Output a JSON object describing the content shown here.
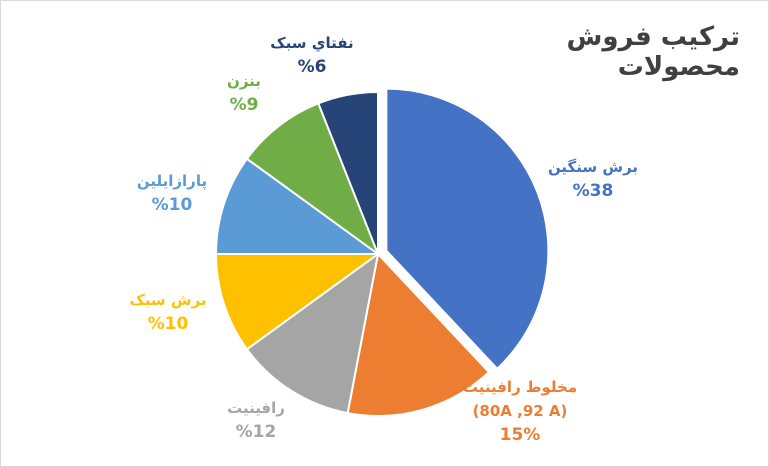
{
  "chart_data": {
    "type": "pie",
    "title": "تركيب فروش محصولات",
    "slices": [
      {
        "name": "برش سنگين",
        "label": "%38",
        "value": 38,
        "color": "#4472C4",
        "exploded": true
      },
      {
        "name": "مخلوط رافينيت",
        "name2": "(80A ,92 A)",
        "label": "15%",
        "value": 15,
        "color": "#ED7D31"
      },
      {
        "name": "رافينيت",
        "label": "%12",
        "value": 12,
        "color": "#A5A5A5"
      },
      {
        "name": "برش سبک",
        "label": "%10",
        "value": 10,
        "color": "#FFC000"
      },
      {
        "name": "پارازايلين",
        "label": "%10",
        "value": 10,
        "color": "#5B9BD5"
      },
      {
        "name": "بنزن",
        "label": "%9",
        "value": 9,
        "color": "#70AD47"
      },
      {
        "name": "نفتاي سبک",
        "label": "%6",
        "value": 6,
        "color": "#264478"
      }
    ]
  }
}
